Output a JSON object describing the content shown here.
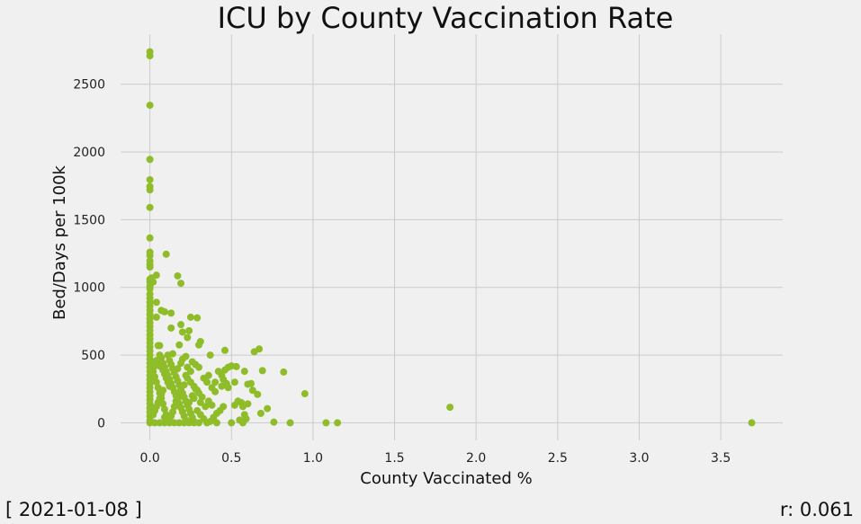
{
  "chart_data": {
    "type": "scatter",
    "title": "ICU by County Vaccination Rate",
    "xlabel": "County Vaccinated %",
    "ylabel": "Bed/Days per 100k",
    "xlim": [
      -0.18,
      3.88
    ],
    "ylim": [
      -130,
      2870
    ],
    "xticks": [
      0.0,
      0.5,
      1.0,
      1.5,
      2.0,
      2.5,
      3.0,
      3.5
    ],
    "xtick_labels": [
      "0.0",
      "0.5",
      "1.0",
      "1.5",
      "2.0",
      "2.5",
      "3.0",
      "3.5"
    ],
    "yticks": [
      0,
      500,
      1000,
      1500,
      2000,
      2500
    ],
    "ytick_labels": [
      "0",
      "500",
      "1000",
      "1500",
      "2000",
      "2500"
    ],
    "grid": true,
    "point_color": "#8fbd2a",
    "points": [
      [
        0,
        2740
      ],
      [
        0,
        2710
      ],
      [
        0,
        2345
      ],
      [
        0,
        1945
      ],
      [
        0,
        1795
      ],
      [
        0,
        1745
      ],
      [
        0,
        1720
      ],
      [
        0,
        1590
      ],
      [
        0,
        1365
      ],
      [
        0,
        1260
      ],
      [
        0,
        1235
      ],
      [
        0,
        1195
      ],
      [
        0,
        1170
      ],
      [
        0,
        1150
      ],
      [
        0,
        1060
      ],
      [
        0,
        1040
      ],
      [
        0,
        1010
      ],
      [
        0,
        990
      ],
      [
        0,
        950
      ],
      [
        0,
        920
      ],
      [
        0,
        890
      ],
      [
        0,
        860
      ],
      [
        0,
        830
      ],
      [
        0,
        800
      ],
      [
        0,
        770
      ],
      [
        0,
        740
      ],
      [
        0,
        710
      ],
      [
        0,
        680
      ],
      [
        0,
        650
      ],
      [
        0,
        620
      ],
      [
        0,
        590
      ],
      [
        0,
        560
      ],
      [
        0,
        530
      ],
      [
        0,
        500
      ],
      [
        0,
        470
      ],
      [
        0,
        440
      ],
      [
        0,
        410
      ],
      [
        0,
        380
      ],
      [
        0,
        350
      ],
      [
        0,
        320
      ],
      [
        0,
        290
      ],
      [
        0,
        260
      ],
      [
        0,
        230
      ],
      [
        0,
        200
      ],
      [
        0,
        170
      ],
      [
        0,
        140
      ],
      [
        0,
        110
      ],
      [
        0,
        80
      ],
      [
        0,
        50
      ],
      [
        0,
        20
      ],
      [
        0,
        0
      ],
      [
        0.01,
        1070
      ],
      [
        0.02,
        1040
      ],
      [
        0.04,
        1090
      ],
      [
        0.04,
        890
      ],
      [
        0.04,
        780
      ],
      [
        0.05,
        570
      ],
      [
        0.06,
        570
      ],
      [
        0.07,
        830
      ],
      [
        0.09,
        820
      ],
      [
        0.1,
        1245
      ],
      [
        0.13,
        700
      ],
      [
        0.13,
        810
      ],
      [
        0.17,
        1085
      ],
      [
        0.19,
        1030
      ],
      [
        0.19,
        725
      ],
      [
        0.2,
        670
      ],
      [
        0.23,
        630
      ],
      [
        0.24,
        680
      ],
      [
        0.25,
        780
      ],
      [
        0.18,
        575
      ],
      [
        0.29,
        775
      ],
      [
        0.3,
        575
      ],
      [
        0.31,
        600
      ],
      [
        0.37,
        500
      ],
      [
        0.46,
        535
      ],
      [
        0.53,
        415
      ],
      [
        0.58,
        380
      ],
      [
        0.64,
        525
      ],
      [
        0.67,
        545
      ],
      [
        0.69,
        385
      ],
      [
        0.82,
        375
      ],
      [
        0.95,
        215
      ],
      [
        0.6,
        285
      ],
      [
        0.62,
        290
      ],
      [
        0.63,
        240
      ],
      [
        0.66,
        210
      ],
      [
        0.68,
        70
      ],
      [
        0.72,
        105
      ],
      [
        0.76,
        5
      ],
      [
        0.86,
        0
      ],
      [
        1.08,
        0
      ],
      [
        1.15,
        0
      ],
      [
        1.84,
        115
      ],
      [
        3.69,
        0
      ],
      [
        0.05,
        450
      ],
      [
        0.06,
        420
      ],
      [
        0.08,
        390
      ],
      [
        0.09,
        360
      ],
      [
        0.1,
        330
      ],
      [
        0.11,
        300
      ],
      [
        0.12,
        270
      ],
      [
        0.08,
        240
      ],
      [
        0.07,
        210
      ],
      [
        0.06,
        180
      ],
      [
        0.05,
        150
      ],
      [
        0.04,
        120
      ],
      [
        0.03,
        90
      ],
      [
        0.02,
        60
      ],
      [
        0.09,
        40
      ],
      [
        0.1,
        10
      ],
      [
        0.12,
        460
      ],
      [
        0.13,
        430
      ],
      [
        0.14,
        400
      ],
      [
        0.15,
        370
      ],
      [
        0.16,
        340
      ],
      [
        0.17,
        310
      ],
      [
        0.18,
        280
      ],
      [
        0.19,
        250
      ],
      [
        0.2,
        220
      ],
      [
        0.21,
        190
      ],
      [
        0.22,
        160
      ],
      [
        0.23,
        130
      ],
      [
        0.24,
        100
      ],
      [
        0.25,
        70
      ],
      [
        0.26,
        40
      ],
      [
        0.27,
        10
      ],
      [
        0.11,
        500
      ],
      [
        0.14,
        510
      ],
      [
        0.2,
        470
      ],
      [
        0.22,
        490
      ],
      [
        0.26,
        450
      ],
      [
        0.28,
        430
      ],
      [
        0.3,
        410
      ],
      [
        0.33,
        330
      ],
      [
        0.35,
        300
      ],
      [
        0.38,
        260
      ],
      [
        0.4,
        230
      ],
      [
        0.42,
        380
      ],
      [
        0.44,
        350
      ],
      [
        0.45,
        320
      ],
      [
        0.47,
        290
      ],
      [
        0.48,
        260
      ],
      [
        0.5,
        420
      ],
      [
        0.52,
        300
      ],
      [
        0.54,
        160
      ],
      [
        0.56,
        150
      ],
      [
        0.57,
        120
      ],
      [
        0.58,
        60
      ],
      [
        0.59,
        30
      ],
      [
        0.55,
        20
      ],
      [
        0.5,
        0
      ],
      [
        0.45,
        120
      ],
      [
        0.43,
        90
      ],
      [
        0.41,
        70
      ],
      [
        0.39,
        40
      ],
      [
        0.37,
        10
      ],
      [
        0.35,
        0
      ],
      [
        0.32,
        190
      ],
      [
        0.3,
        220
      ],
      [
        0.28,
        250
      ],
      [
        0.26,
        200
      ],
      [
        0.24,
        150
      ],
      [
        0.29,
        90
      ],
      [
        0.31,
        60
      ],
      [
        0.33,
        30
      ],
      [
        0.36,
        160
      ],
      [
        0.38,
        130
      ],
      [
        0.22,
        350
      ],
      [
        0.21,
        280
      ],
      [
        0.19,
        240
      ],
      [
        0.18,
        200
      ],
      [
        0.16,
        160
      ],
      [
        0.15,
        120
      ],
      [
        0.14,
        80
      ],
      [
        0.13,
        50
      ],
      [
        0.12,
        20
      ],
      [
        0.17,
        400
      ],
      [
        0.19,
        440
      ],
      [
        0.03,
        340
      ],
      [
        0.04,
        300
      ],
      [
        0.05,
        260
      ],
      [
        0.06,
        220
      ],
      [
        0.07,
        180
      ],
      [
        0.08,
        140
      ],
      [
        0.09,
        100
      ],
      [
        0.1,
        60
      ],
      [
        0.02,
        380
      ],
      [
        0.03,
        420
      ],
      [
        0.04,
        460
      ],
      [
        0.06,
        500
      ],
      [
        0.07,
        480
      ],
      [
        0.08,
        440
      ],
      [
        0.09,
        410
      ],
      [
        0.1,
        380
      ],
      [
        0.11,
        350
      ],
      [
        0.12,
        320
      ],
      [
        0.13,
        290
      ],
      [
        0.14,
        260
      ],
      [
        0.15,
        230
      ],
      [
        0.16,
        200
      ],
      [
        0.17,
        170
      ],
      [
        0.18,
        140
      ],
      [
        0.19,
        110
      ],
      [
        0.2,
        80
      ],
      [
        0.21,
        50
      ],
      [
        0.22,
        20
      ],
      [
        0.23,
        330
      ],
      [
        0.25,
        300
      ],
      [
        0.27,
        270
      ],
      [
        0.29,
        240
      ],
      [
        0.27,
        180
      ],
      [
        0.25,
        380
      ],
      [
        0.23,
        410
      ],
      [
        0.31,
        150
      ],
      [
        0.34,
        120
      ],
      [
        0.36,
        350
      ],
      [
        0.4,
        300
      ],
      [
        0.44,
        270
      ],
      [
        0.46,
        390
      ],
      [
        0.48,
        410
      ],
      [
        0.52,
        130
      ],
      [
        0.6,
        140
      ],
      [
        0.57,
        0
      ],
      [
        0.41,
        0
      ],
      [
        0.39,
        20
      ],
      [
        0.3,
        0
      ],
      [
        0.27,
        0
      ],
      [
        0.24,
        0
      ],
      [
        0.21,
        0
      ],
      [
        0.18,
        0
      ],
      [
        0.15,
        0
      ],
      [
        0.12,
        0
      ],
      [
        0.09,
        0
      ],
      [
        0.06,
        0
      ],
      [
        0.03,
        0
      ]
    ]
  },
  "footer": {
    "date": "[ 2021-01-08 ]",
    "r_value": "r: 0.061"
  }
}
